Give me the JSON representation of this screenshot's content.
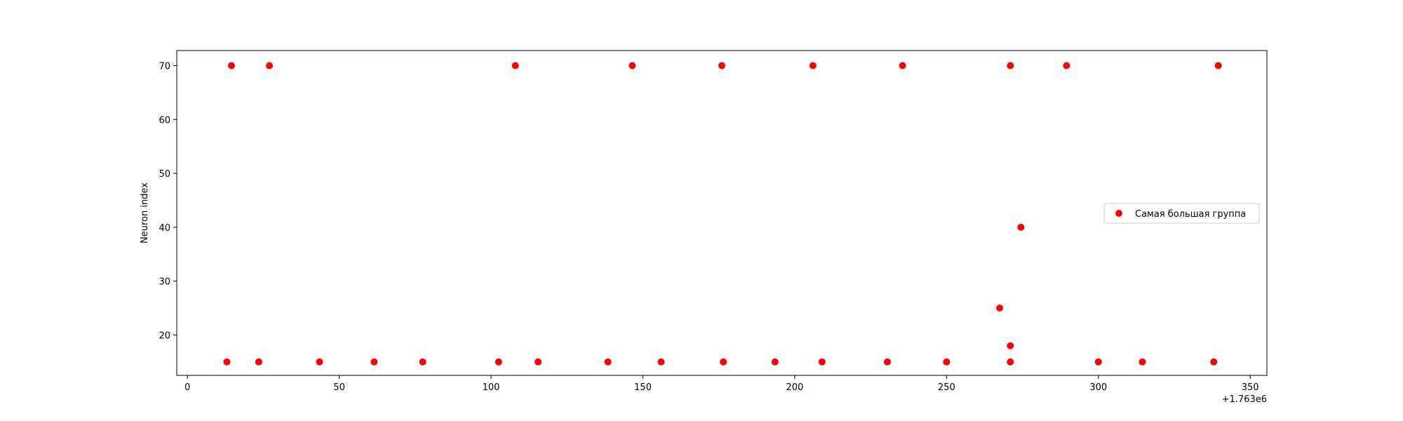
{
  "chart_data": {
    "type": "scatter",
    "title": "",
    "xlabel": "",
    "ylabel": "Neuron index",
    "x_offset_label": "+1.763e6",
    "xlim": [
      -3.5,
      355.5
    ],
    "ylim": [
      12.5,
      72.8
    ],
    "x_ticks": [
      0,
      50,
      100,
      150,
      200,
      250,
      300,
      350
    ],
    "y_ticks": [
      20,
      30,
      40,
      50,
      60,
      70
    ],
    "grid": false,
    "legend_position": "center-right",
    "series": [
      {
        "name": "Самая большая группа",
        "color": "#ff0000",
        "marker": "circle",
        "points": [
          {
            "x": 13,
            "y": 15
          },
          {
            "x": 14.5,
            "y": 70
          },
          {
            "x": 23.5,
            "y": 15
          },
          {
            "x": 27,
            "y": 70
          },
          {
            "x": 43.5,
            "y": 15
          },
          {
            "x": 61.5,
            "y": 15
          },
          {
            "x": 77.5,
            "y": 15
          },
          {
            "x": 102.5,
            "y": 15
          },
          {
            "x": 108,
            "y": 70
          },
          {
            "x": 115.5,
            "y": 15
          },
          {
            "x": 138.5,
            "y": 15
          },
          {
            "x": 146.5,
            "y": 70
          },
          {
            "x": 156,
            "y": 15
          },
          {
            "x": 176,
            "y": 70
          },
          {
            "x": 176.5,
            "y": 15
          },
          {
            "x": 193.5,
            "y": 15
          },
          {
            "x": 206,
            "y": 70
          },
          {
            "x": 209,
            "y": 15
          },
          {
            "x": 230.5,
            "y": 15
          },
          {
            "x": 235.5,
            "y": 70
          },
          {
            "x": 250,
            "y": 15
          },
          {
            "x": 267.5,
            "y": 25
          },
          {
            "x": 271,
            "y": 70
          },
          {
            "x": 271,
            "y": 18
          },
          {
            "x": 271,
            "y": 15
          },
          {
            "x": 274.5,
            "y": 40
          },
          {
            "x": 289.5,
            "y": 70
          },
          {
            "x": 300,
            "y": 15
          },
          {
            "x": 314.5,
            "y": 15
          },
          {
            "x": 338,
            "y": 15
          },
          {
            "x": 339.5,
            "y": 70
          }
        ]
      }
    ]
  }
}
